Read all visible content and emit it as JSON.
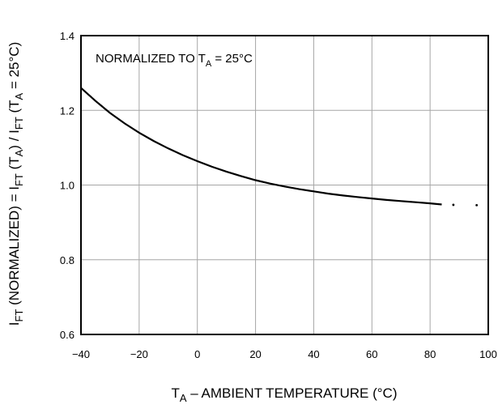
{
  "chart_data": {
    "type": "line",
    "annotation": {
      "prefix": "NORMALIZED TO T",
      "sub": "A",
      "suffix": " = 25°C"
    },
    "xlabel": {
      "prefix": "T",
      "sub": "A",
      "suffix": " – AMBIENT TEMPERATURE (°C)"
    },
    "ylabel": {
      "parts": [
        {
          "t": "I"
        },
        {
          "t": "FT",
          "sub": true
        },
        {
          "t": " (NORMALIZED) = I"
        },
        {
          "t": "FT",
          "sub": true
        },
        {
          "t": " (T"
        },
        {
          "t": "A",
          "sub": true
        },
        {
          "t": ") / I"
        },
        {
          "t": "FT",
          "sub": true
        },
        {
          "t": " (T"
        },
        {
          "t": "A",
          "sub": true
        },
        {
          "t": " = 25°C)"
        }
      ]
    },
    "xlim": [
      -40,
      100
    ],
    "ylim": [
      0.6,
      1.4
    ],
    "xticks": [
      -40,
      -20,
      0,
      20,
      40,
      60,
      80,
      100
    ],
    "xtick_labels": [
      "−40",
      "−20",
      "0",
      "20",
      "40",
      "60",
      "80",
      "100"
    ],
    "yticks": [
      0.6,
      0.8,
      1.0,
      1.2,
      1.4
    ],
    "ytick_labels": [
      "0.6",
      "0.8",
      "1.0",
      "1.2",
      "1.4"
    ],
    "grid": true,
    "series": [
      {
        "x": [
          -40,
          -35,
          -30,
          -25,
          -20,
          -15,
          -10,
          -5,
          0,
          5,
          10,
          15,
          20,
          25,
          30,
          35,
          40,
          45,
          50,
          55,
          60,
          65,
          70,
          75,
          80,
          84
        ],
        "y": [
          1.26,
          1.225,
          1.193,
          1.165,
          1.14,
          1.118,
          1.098,
          1.08,
          1.064,
          1.049,
          1.036,
          1.024,
          1.013,
          1.004,
          0.996,
          0.989,
          0.983,
          0.977,
          0.972,
          0.968,
          0.964,
          0.96,
          0.957,
          0.954,
          0.951,
          0.948
        ]
      }
    ],
    "extrapolation_dots": [
      {
        "x": 88,
        "y": 0.947
      },
      {
        "x": 96,
        "y": 0.946
      }
    ]
  }
}
